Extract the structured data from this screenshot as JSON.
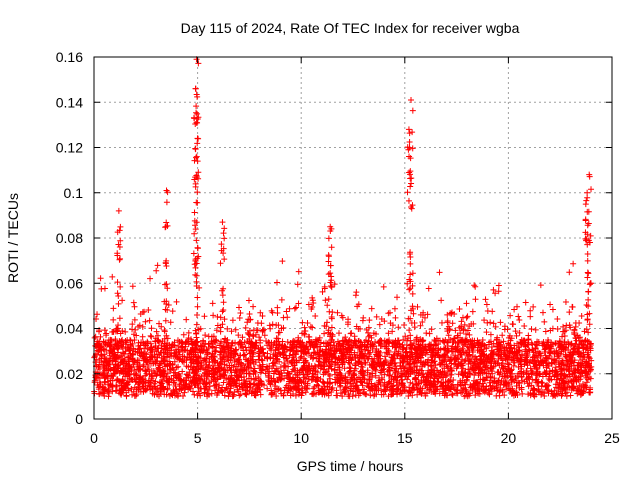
{
  "chart_data": {
    "type": "scatter",
    "title": "Day 115 of 2024, Rate Of TEC Index for receiver wgba",
    "xlabel": "GPS time / hours",
    "ylabel": "ROTI / TECUs",
    "xlim": [
      0,
      25
    ],
    "ylim": [
      0,
      0.16
    ],
    "xticks": [
      0,
      5,
      10,
      15,
      20,
      25
    ],
    "yticks": [
      0,
      0.02,
      0.04,
      0.06,
      0.08,
      0.1,
      0.12,
      0.14,
      0.16
    ],
    "xtick_labels": [
      "0",
      "5",
      "10",
      "15",
      "20",
      "25"
    ],
    "ytick_labels": [
      "0",
      "0.02",
      "0.04",
      "0.06",
      "0.08",
      "0.1",
      "0.12",
      "0.14",
      "0.16"
    ],
    "grid": true,
    "marker": "+",
    "color": "#ff0000",
    "data_range_hours": [
      0,
      24
    ],
    "peaks": [
      {
        "x": 3.5,
        "y": 0.101
      },
      {
        "x": 4.95,
        "y": 0.159
      },
      {
        "x": 4.9,
        "y": 0.146
      },
      {
        "x": 4.95,
        "y": 0.131
      },
      {
        "x": 15.3,
        "y": 0.141
      },
      {
        "x": 15.2,
        "y": 0.128
      },
      {
        "x": 23.9,
        "y": 0.108
      },
      {
        "x": 23.8,
        "y": 0.1
      },
      {
        "x": 1.2,
        "y": 0.092
      },
      {
        "x": 11.4,
        "y": 0.085
      },
      {
        "x": 6.2,
        "y": 0.087
      }
    ],
    "baseline_band": [
      0.01,
      0.035
    ]
  }
}
